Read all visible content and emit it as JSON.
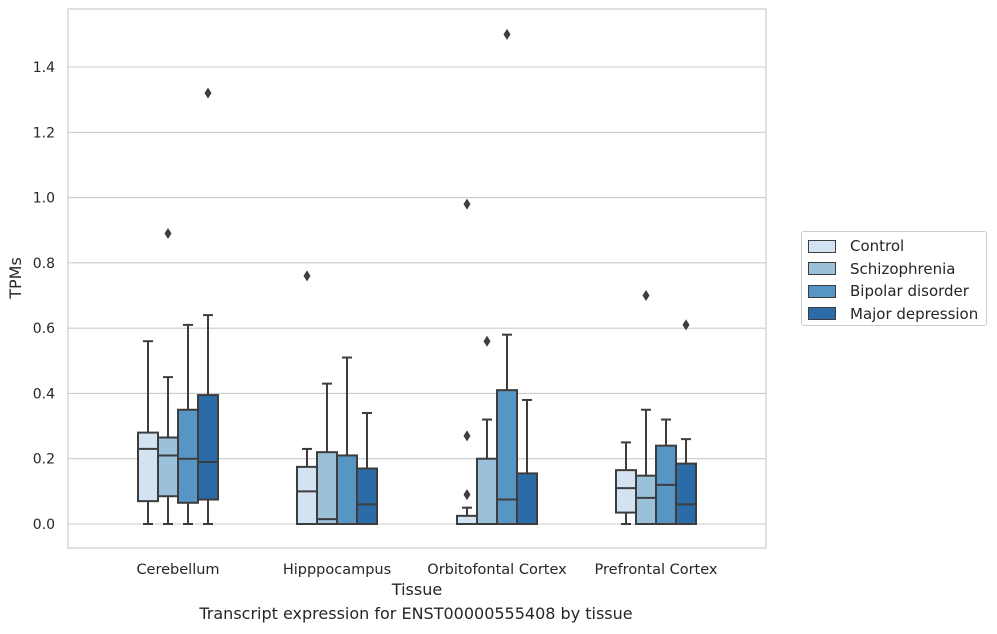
{
  "chart_data": {
    "type": "box",
    "title": "Transcript expression for ENST00000555408 by tissue",
    "xlabel": "Tissue",
    "ylabel": "TPMs",
    "ylim": [
      -0.07,
      1.58
    ],
    "yticks": [
      0.0,
      0.2,
      0.4,
      0.6,
      0.8,
      1.0,
      1.2,
      1.4
    ],
    "ytick_labels": [
      "0.0",
      "0.2",
      "0.4",
      "0.6",
      "0.8",
      "1.0",
      "1.2",
      "1.4"
    ],
    "grid": "horizontal",
    "legend_position": "right",
    "categories": [
      "Cerebellum",
      "Hipppocampus",
      "Orbitofontal Cortex",
      "Prefrontal Cortex"
    ],
    "series": [
      {
        "name": "Control",
        "color": "#d4e3f1",
        "boxes": [
          {
            "whislo": 0.0,
            "q1": 0.07,
            "med": 0.23,
            "q3": 0.28,
            "whishi": 0.56,
            "fliers": []
          },
          {
            "whislo": 0.0,
            "q1": 0.0,
            "med": 0.1,
            "q3": 0.175,
            "whishi": 0.23,
            "fliers": [
              0.76
            ]
          },
          {
            "whislo": 0.0,
            "q1": 0.0,
            "med": 0.0,
            "q3": 0.025,
            "whishi": 0.05,
            "fliers": [
              0.09,
              0.27,
              0.98
            ]
          },
          {
            "whislo": 0.0,
            "q1": 0.035,
            "med": 0.11,
            "q3": 0.165,
            "whishi": 0.25,
            "fliers": []
          }
        ]
      },
      {
        "name": "Schizophrenia",
        "color": "#9bc1da",
        "boxes": [
          {
            "whislo": 0.0,
            "q1": 0.085,
            "med": 0.21,
            "q3": 0.265,
            "whishi": 0.45,
            "fliers": [
              0.89
            ]
          },
          {
            "whislo": 0.0,
            "q1": 0.0,
            "med": 0.015,
            "q3": 0.22,
            "whishi": 0.43,
            "fliers": []
          },
          {
            "whislo": 0.0,
            "q1": 0.0,
            "med": 0.0,
            "q3": 0.2,
            "whishi": 0.32,
            "fliers": [
              0.56
            ]
          },
          {
            "whislo": 0.0,
            "q1": 0.0,
            "med": 0.08,
            "q3": 0.148,
            "whishi": 0.35,
            "fliers": [
              0.7
            ]
          }
        ]
      },
      {
        "name": "Bipolar disorder",
        "color": "#5796c4",
        "boxes": [
          {
            "whislo": 0.0,
            "q1": 0.065,
            "med": 0.2,
            "q3": 0.35,
            "whishi": 0.61,
            "fliers": []
          },
          {
            "whislo": 0.0,
            "q1": 0.0,
            "med": 0.0,
            "q3": 0.21,
            "whishi": 0.51,
            "fliers": []
          },
          {
            "whislo": 0.0,
            "q1": 0.0,
            "med": 0.075,
            "q3": 0.41,
            "whishi": 0.58,
            "fliers": [
              1.5
            ]
          },
          {
            "whislo": 0.0,
            "q1": 0.0,
            "med": 0.12,
            "q3": 0.24,
            "whishi": 0.32,
            "fliers": []
          }
        ]
      },
      {
        "name": "Major depression",
        "color": "#2b6ba8",
        "boxes": [
          {
            "whislo": 0.0,
            "q1": 0.075,
            "med": 0.19,
            "q3": 0.395,
            "whishi": 0.64,
            "fliers": [
              1.32
            ]
          },
          {
            "whislo": 0.0,
            "q1": 0.0,
            "med": 0.06,
            "q3": 0.17,
            "whishi": 0.34,
            "fliers": []
          },
          {
            "whislo": 0.0,
            "q1": 0.0,
            "med": 0.0,
            "q3": 0.155,
            "whishi": 0.38,
            "fliers": []
          },
          {
            "whislo": 0.0,
            "q1": 0.0,
            "med": 0.06,
            "q3": 0.185,
            "whishi": 0.26,
            "fliers": [
              0.61
            ]
          }
        ]
      }
    ]
  }
}
